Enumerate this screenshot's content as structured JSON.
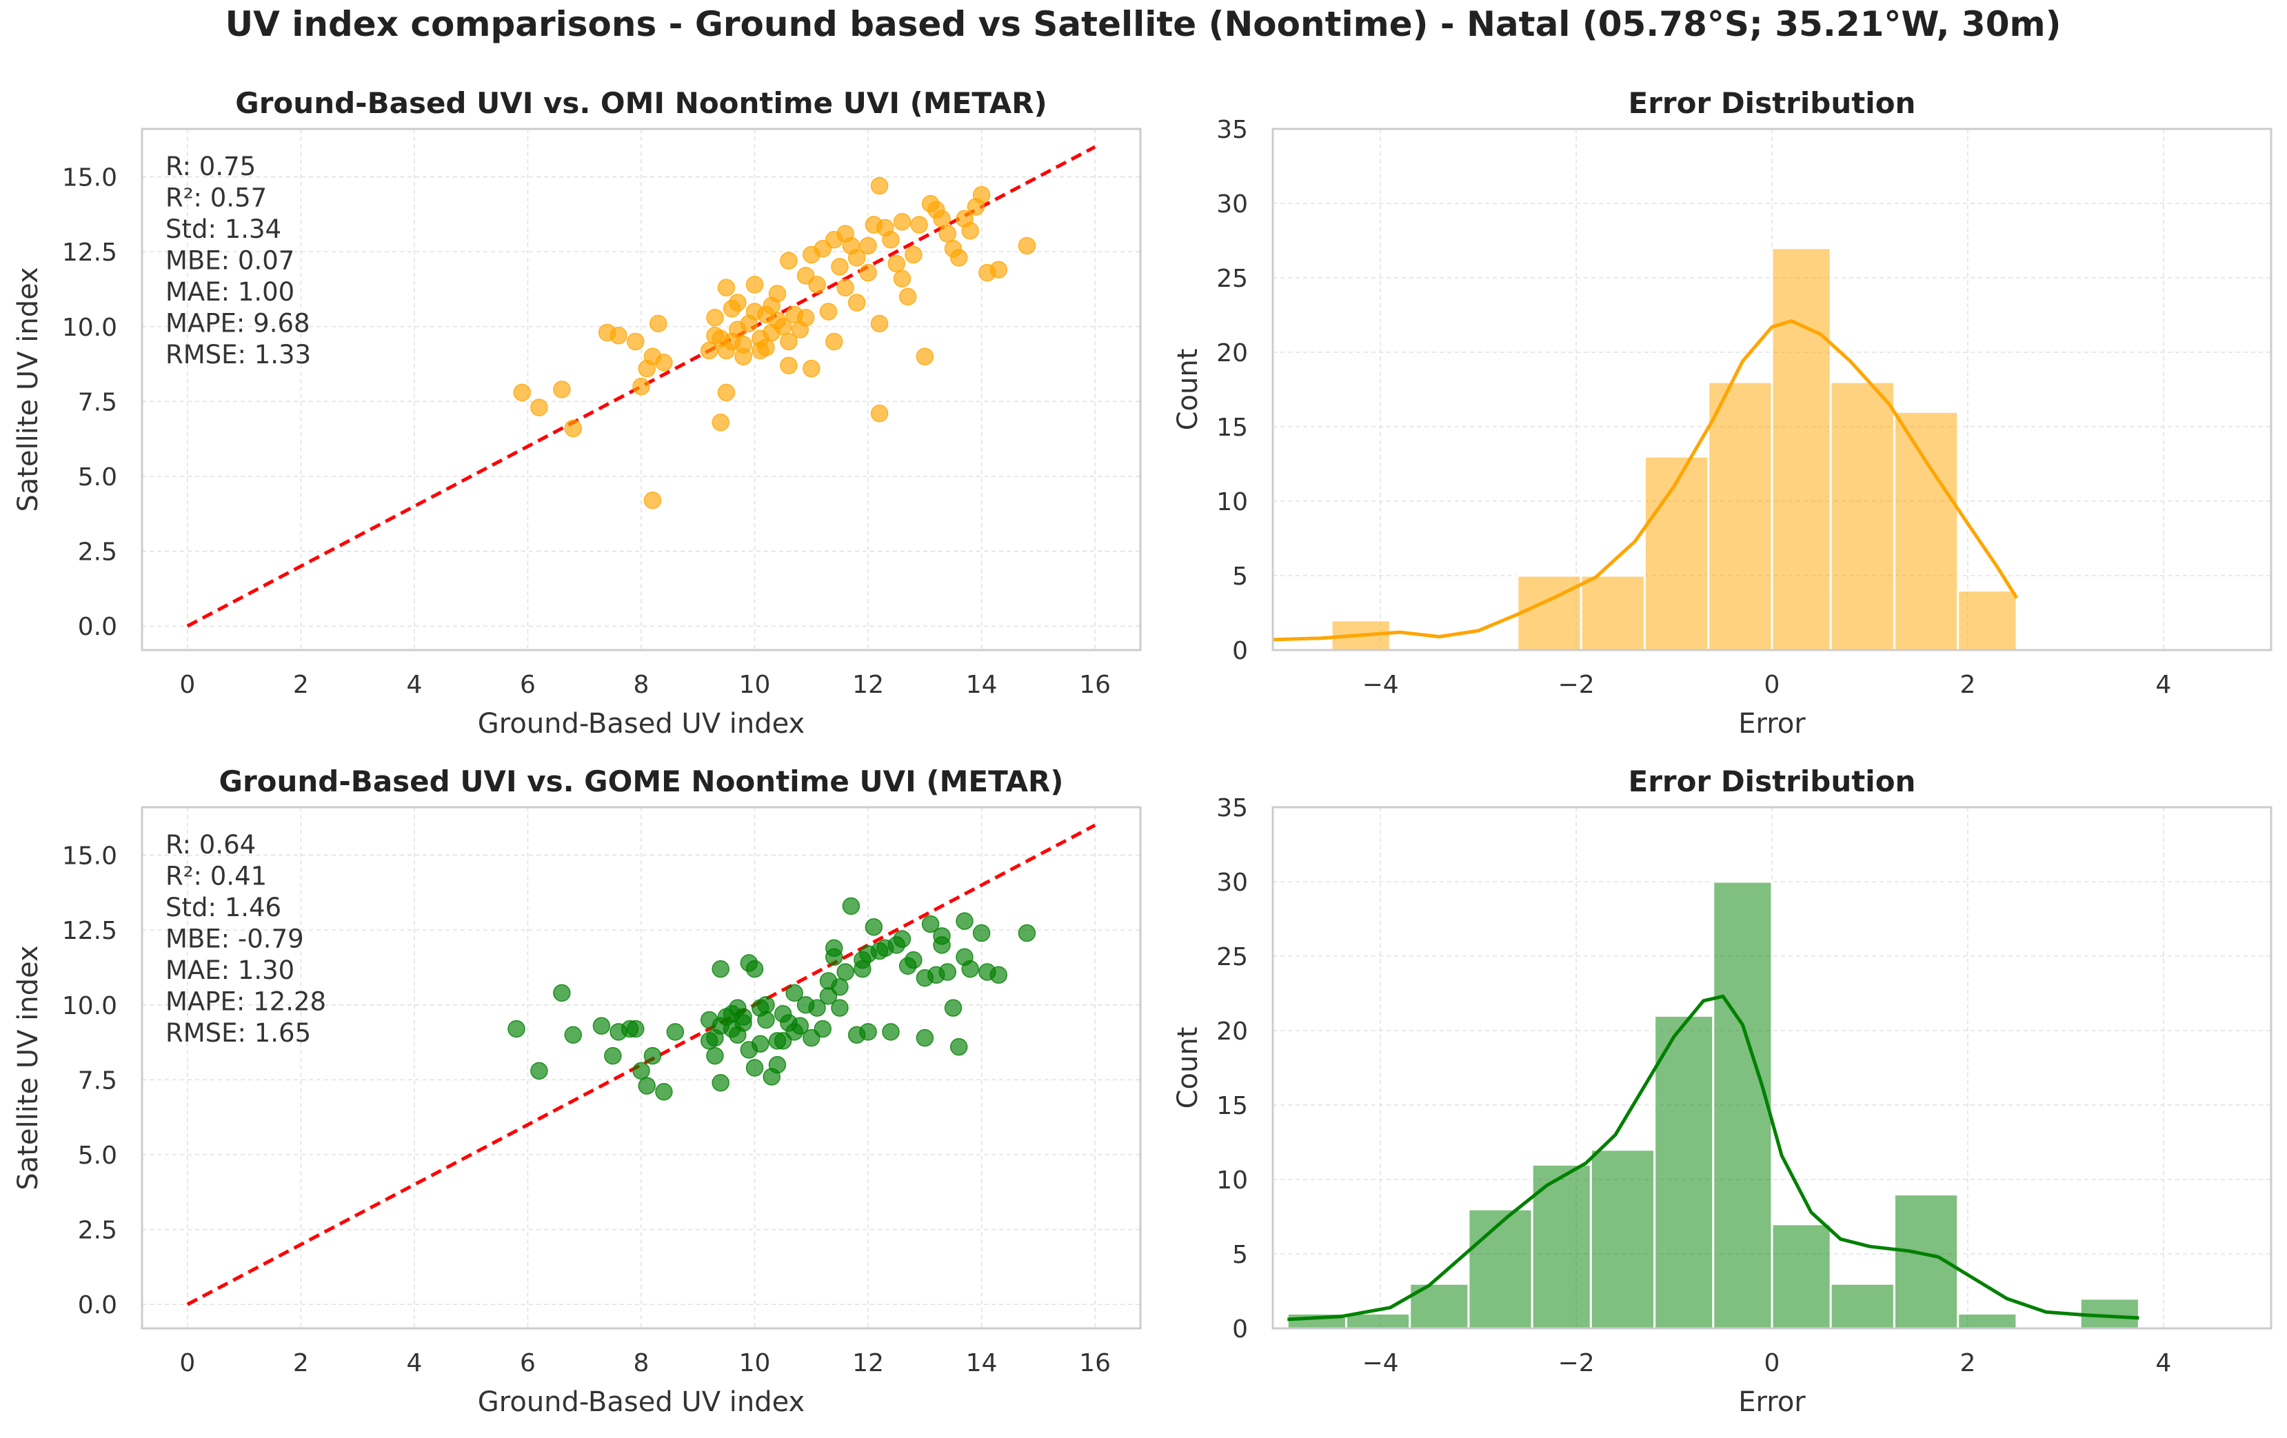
{
  "figure": {
    "title": "UV index comparisons - Ground based vs Satellite (Noontime) - Natal (05.78°S; 35.21°W, 30m)"
  },
  "colors": {
    "omi": "#ffa500",
    "gome": "#008000",
    "identity": "#ff0000",
    "grid": "#e0e0e0",
    "frame": "#cccccc"
  },
  "chart_data": [
    {
      "type": "scatter",
      "id": "omi-scatter",
      "title": "Ground-Based UVI vs. OMI Noontime UVI (METAR)",
      "xlabel": "Ground-Based UV index",
      "ylabel": "Satellite UV index",
      "xlim": [
        -0.8,
        16.8
      ],
      "ylim": [
        -0.8,
        16.6
      ],
      "xticks": [
        0,
        2,
        4,
        6,
        8,
        10,
        12,
        14,
        16
      ],
      "xtick_labels": [
        "0",
        "2",
        "4",
        "6",
        "8",
        "10",
        "12",
        "14",
        "16"
      ],
      "yticks": [
        0,
        2.5,
        5,
        7.5,
        10,
        12.5,
        15
      ],
      "ytick_labels": [
        "0.0",
        "2.5",
        "5.0",
        "7.5",
        "10.0",
        "12.5",
        "15.0"
      ],
      "identity_line": [
        0,
        16
      ],
      "color": "#ffa500",
      "stats": [
        "R: 0.75",
        "R²: 0.57",
        "Std: 1.34",
        "MBE: 0.07",
        "MAE: 1.00",
        "MAPE: 9.68",
        "RMSE: 1.33"
      ],
      "points": [
        [
          5.9,
          7.8
        ],
        [
          6.2,
          7.3
        ],
        [
          6.6,
          7.9
        ],
        [
          6.8,
          6.6
        ],
        [
          7.4,
          9.8
        ],
        [
          7.6,
          9.7
        ],
        [
          7.9,
          9.5
        ],
        [
          8.0,
          8.0
        ],
        [
          8.1,
          8.6
        ],
        [
          8.2,
          9.0
        ],
        [
          8.3,
          10.1
        ],
        [
          8.4,
          8.8
        ],
        [
          8.2,
          4.2
        ],
        [
          9.2,
          9.2
        ],
        [
          9.3,
          10.3
        ],
        [
          9.4,
          9.6
        ],
        [
          9.5,
          9.2
        ],
        [
          9.5,
          11.3
        ],
        [
          9.6,
          10.6
        ],
        [
          9.7,
          9.9
        ],
        [
          9.8,
          9.4
        ],
        [
          9.9,
          10.1
        ],
        [
          10.0,
          11.4
        ],
        [
          10.1,
          9.6
        ],
        [
          10.2,
          10.4
        ],
        [
          10.3,
          9.8
        ],
        [
          10.4,
          11.1
        ],
        [
          10.5,
          10.0
        ],
        [
          10.6,
          9.5
        ],
        [
          10.7,
          10.4
        ],
        [
          10.8,
          9.9
        ],
        [
          10.9,
          11.7
        ],
        [
          11.0,
          12.4
        ],
        [
          11.2,
          12.6
        ],
        [
          11.4,
          12.9
        ],
        [
          11.6,
          13.1
        ],
        [
          11.8,
          12.3
        ],
        [
          12.0,
          12.7
        ],
        [
          12.1,
          13.4
        ],
        [
          12.2,
          14.7
        ],
        [
          12.3,
          13.3
        ],
        [
          12.5,
          12.1
        ],
        [
          12.6,
          11.6
        ],
        [
          12.7,
          11.0
        ],
        [
          12.9,
          13.4
        ],
        [
          13.1,
          14.1
        ],
        [
          13.3,
          13.6
        ],
        [
          13.5,
          12.6
        ],
        [
          13.6,
          12.3
        ],
        [
          13.8,
          13.2
        ],
        [
          14.0,
          14.4
        ],
        [
          14.1,
          11.8
        ],
        [
          14.3,
          11.9
        ],
        [
          14.8,
          12.7
        ],
        [
          9.4,
          6.8
        ],
        [
          9.5,
          7.8
        ],
        [
          12.2,
          7.1
        ],
        [
          13.0,
          9.0
        ],
        [
          12.2,
          10.1
        ],
        [
          11.4,
          9.5
        ],
        [
          11.0,
          8.6
        ],
        [
          10.6,
          8.7
        ],
        [
          9.8,
          9.0
        ],
        [
          10.1,
          9.2
        ],
        [
          9.6,
          9.5
        ],
        [
          10.3,
          10.7
        ],
        [
          10.9,
          10.3
        ],
        [
          11.6,
          11.3
        ],
        [
          12.0,
          11.8
        ],
        [
          11.3,
          10.5
        ],
        [
          11.8,
          10.8
        ],
        [
          12.4,
          12.9
        ],
        [
          13.4,
          13.1
        ],
        [
          13.9,
          14.0
        ],
        [
          13.7,
          13.6
        ],
        [
          12.8,
          12.4
        ],
        [
          11.5,
          12.0
        ],
        [
          11.1,
          11.4
        ],
        [
          10.4,
          10.2
        ],
        [
          10.0,
          10.5
        ],
        [
          9.7,
          10.8
        ],
        [
          9.3,
          9.7
        ],
        [
          10.2,
          9.3
        ],
        [
          10.6,
          12.2
        ],
        [
          11.7,
          12.7
        ],
        [
          12.6,
          13.5
        ],
        [
          13.2,
          13.9
        ]
      ]
    },
    {
      "type": "bar",
      "id": "omi-hist",
      "title": "Error Distribution",
      "xlabel": "Error",
      "ylabel": "Count",
      "xlim": [
        -5.1,
        5.1
      ],
      "ylim": [
        0,
        35
      ],
      "xticks": [
        -4,
        -2,
        0,
        2,
        4
      ],
      "xtick_labels": [
        "−4",
        "−2",
        "0",
        "2",
        "4"
      ],
      "yticks": [
        0,
        5,
        10,
        15,
        20,
        25,
        30,
        35
      ],
      "ytick_labels": [
        "0",
        "5",
        "10",
        "15",
        "20",
        "25",
        "30",
        "35"
      ],
      "color": "#ffa500",
      "bins": [
        {
          "x0": -5.2,
          "x1": -4.5,
          "count": 0
        },
        {
          "x0": -4.5,
          "x1": -3.9,
          "count": 2
        },
        {
          "x0": -2.6,
          "x1": -1.95,
          "count": 5
        },
        {
          "x0": -1.95,
          "x1": -1.3,
          "count": 5
        },
        {
          "x0": -1.3,
          "x1": -0.65,
          "count": 13
        },
        {
          "x0": -0.65,
          "x1": 0.0,
          "count": 18
        },
        {
          "x0": 0.0,
          "x1": 0.6,
          "count": 27
        },
        {
          "x0": 0.6,
          "x1": 1.25,
          "count": 18
        },
        {
          "x0": 1.25,
          "x1": 1.9,
          "count": 16
        },
        {
          "x0": 1.9,
          "x1": 2.5,
          "count": 4
        }
      ],
      "kde": [
        [
          -5.1,
          0.7
        ],
        [
          -4.6,
          0.8
        ],
        [
          -4.2,
          1.0
        ],
        [
          -3.8,
          1.2
        ],
        [
          -3.4,
          0.9
        ],
        [
          -3.0,
          1.3
        ],
        [
          -2.6,
          2.4
        ],
        [
          -2.2,
          3.6
        ],
        [
          -1.8,
          4.9
        ],
        [
          -1.4,
          7.3
        ],
        [
          -1.0,
          11.0
        ],
        [
          -0.6,
          15.5
        ],
        [
          -0.3,
          19.4
        ],
        [
          0.0,
          21.7
        ],
        [
          0.2,
          22.1
        ],
        [
          0.5,
          21.2
        ],
        [
          0.8,
          19.4
        ],
        [
          1.2,
          16.5
        ],
        [
          1.6,
          12.4
        ],
        [
          2.0,
          8.5
        ],
        [
          2.3,
          5.6
        ],
        [
          2.5,
          3.5
        ]
      ]
    },
    {
      "type": "scatter",
      "id": "gome-scatter",
      "title": "Ground-Based UVI vs. GOME Noontime UVI (METAR)",
      "xlabel": "Ground-Based UV index",
      "ylabel": "Satellite UV index",
      "xlim": [
        -0.8,
        16.8
      ],
      "ylim": [
        -0.8,
        16.6
      ],
      "xticks": [
        0,
        2,
        4,
        6,
        8,
        10,
        12,
        14,
        16
      ],
      "xtick_labels": [
        "0",
        "2",
        "4",
        "6",
        "8",
        "10",
        "12",
        "14",
        "16"
      ],
      "yticks": [
        0,
        2.5,
        5,
        7.5,
        10,
        12.5,
        15
      ],
      "ytick_labels": [
        "0.0",
        "2.5",
        "5.0",
        "7.5",
        "10.0",
        "12.5",
        "15.0"
      ],
      "identity_line": [
        0,
        16
      ],
      "color": "#008000",
      "stats": [
        "R: 0.64",
        "R²: 0.41",
        "Std: 1.46",
        "MBE: -0.79",
        "MAE: 1.30",
        "MAPE: 12.28",
        "RMSE: 1.65"
      ],
      "points": [
        [
          5.8,
          9.2
        ],
        [
          6.2,
          7.8
        ],
        [
          6.6,
          10.4
        ],
        [
          6.8,
          9.0
        ],
        [
          7.3,
          9.3
        ],
        [
          7.5,
          8.3
        ],
        [
          7.6,
          9.1
        ],
        [
          7.8,
          9.2
        ],
        [
          7.9,
          9.2
        ],
        [
          8.0,
          7.8
        ],
        [
          8.1,
          7.3
        ],
        [
          8.2,
          8.3
        ],
        [
          8.4,
          7.1
        ],
        [
          9.2,
          8.8
        ],
        [
          9.3,
          8.3
        ],
        [
          9.4,
          11.2
        ],
        [
          9.4,
          7.4
        ],
        [
          9.5,
          9.6
        ],
        [
          9.6,
          9.2
        ],
        [
          9.7,
          9.0
        ],
        [
          9.8,
          9.6
        ],
        [
          9.9,
          11.4
        ],
        [
          10.0,
          11.2
        ],
        [
          10.0,
          7.9
        ],
        [
          10.1,
          8.7
        ],
        [
          10.2,
          9.5
        ],
        [
          10.3,
          7.6
        ],
        [
          10.4,
          8.0
        ],
        [
          10.5,
          8.8
        ],
        [
          10.6,
          9.4
        ],
        [
          10.7,
          10.4
        ],
        [
          10.8,
          9.3
        ],
        [
          11.0,
          8.9
        ],
        [
          11.2,
          9.2
        ],
        [
          11.3,
          10.8
        ],
        [
          11.4,
          11.6
        ],
        [
          11.5,
          9.9
        ],
        [
          11.6,
          11.1
        ],
        [
          11.7,
          13.3
        ],
        [
          11.8,
          9.0
        ],
        [
          11.9,
          11.2
        ],
        [
          12.0,
          9.1
        ],
        [
          12.1,
          12.6
        ],
        [
          12.2,
          11.8
        ],
        [
          12.4,
          9.1
        ],
        [
          12.6,
          12.2
        ],
        [
          12.8,
          11.5
        ],
        [
          13.0,
          10.9
        ],
        [
          13.1,
          12.7
        ],
        [
          13.2,
          11.0
        ],
        [
          13.3,
          12.3
        ],
        [
          13.4,
          11.1
        ],
        [
          13.5,
          9.9
        ],
        [
          13.6,
          8.6
        ],
        [
          13.7,
          12.8
        ],
        [
          13.8,
          11.2
        ],
        [
          14.0,
          12.4
        ],
        [
          14.1,
          11.1
        ],
        [
          14.3,
          11.0
        ],
        [
          14.8,
          12.4
        ],
        [
          13.0,
          8.9
        ],
        [
          12.7,
          11.3
        ],
        [
          12.3,
          11.9
        ],
        [
          11.9,
          11.5
        ],
        [
          11.3,
          10.3
        ],
        [
          10.9,
          10.0
        ],
        [
          10.5,
          9.7
        ],
        [
          10.1,
          9.9
        ],
        [
          9.8,
          9.4
        ],
        [
          9.6,
          9.7
        ],
        [
          9.4,
          9.3
        ],
        [
          9.2,
          9.5
        ],
        [
          9.7,
          9.9
        ],
        [
          10.2,
          10.0
        ],
        [
          10.7,
          9.1
        ],
        [
          11.1,
          9.9
        ],
        [
          11.5,
          10.6
        ],
        [
          12.0,
          11.7
        ],
        [
          12.5,
          12.0
        ],
        [
          13.3,
          12.0
        ],
        [
          13.7,
          11.6
        ],
        [
          11.4,
          11.9
        ],
        [
          10.4,
          8.8
        ],
        [
          9.9,
          8.5
        ],
        [
          9.3,
          8.9
        ],
        [
          8.6,
          9.1
        ]
      ]
    },
    {
      "type": "bar",
      "id": "gome-hist",
      "title": "Error Distribution",
      "xlabel": "Error",
      "ylabel": "Count",
      "xlim": [
        -5.1,
        5.1
      ],
      "ylim": [
        0,
        35
      ],
      "xticks": [
        -4,
        -2,
        0,
        2,
        4
      ],
      "xtick_labels": [
        "−4",
        "−2",
        "0",
        "2",
        "4"
      ],
      "yticks": [
        0,
        5,
        10,
        15,
        20,
        25,
        30,
        35
      ],
      "ytick_labels": [
        "0",
        "5",
        "10",
        "15",
        "20",
        "25",
        "30",
        "35"
      ],
      "color": "#008000",
      "bins": [
        {
          "x0": -4.95,
          "x1": -4.35,
          "count": 1
        },
        {
          "x0": -4.35,
          "x1": -3.7,
          "count": 1
        },
        {
          "x0": -3.7,
          "x1": -3.1,
          "count": 3
        },
        {
          "x0": -3.1,
          "x1": -2.45,
          "count": 8
        },
        {
          "x0": -2.45,
          "x1": -1.85,
          "count": 11
        },
        {
          "x0": -1.85,
          "x1": -1.2,
          "count": 12
        },
        {
          "x0": -1.2,
          "x1": -0.6,
          "count": 21
        },
        {
          "x0": -0.6,
          "x1": 0.0,
          "count": 30
        },
        {
          "x0": 0.0,
          "x1": 0.6,
          "count": 7
        },
        {
          "x0": 0.6,
          "x1": 1.25,
          "count": 3
        },
        {
          "x0": 1.25,
          "x1": 1.9,
          "count": 9
        },
        {
          "x0": 1.9,
          "x1": 2.5,
          "count": 1
        },
        {
          "x0": 3.15,
          "x1": 3.75,
          "count": 2
        }
      ],
      "kde": [
        [
          -4.95,
          0.6
        ],
        [
          -4.4,
          0.8
        ],
        [
          -3.9,
          1.4
        ],
        [
          -3.5,
          2.9
        ],
        [
          -3.1,
          5.2
        ],
        [
          -2.7,
          7.5
        ],
        [
          -2.3,
          9.6
        ],
        [
          -1.9,
          11.1
        ],
        [
          -1.6,
          13.0
        ],
        [
          -1.3,
          16.3
        ],
        [
          -1.0,
          19.6
        ],
        [
          -0.7,
          22.0
        ],
        [
          -0.5,
          22.3
        ],
        [
          -0.3,
          20.4
        ],
        [
          -0.1,
          16.3
        ],
        [
          0.1,
          11.6
        ],
        [
          0.4,
          7.8
        ],
        [
          0.7,
          6.0
        ],
        [
          1.0,
          5.5
        ],
        [
          1.4,
          5.2
        ],
        [
          1.7,
          4.8
        ],
        [
          2.0,
          3.6
        ],
        [
          2.4,
          2.0
        ],
        [
          2.8,
          1.1
        ],
        [
          3.2,
          0.9
        ],
        [
          3.75,
          0.7
        ]
      ]
    }
  ]
}
